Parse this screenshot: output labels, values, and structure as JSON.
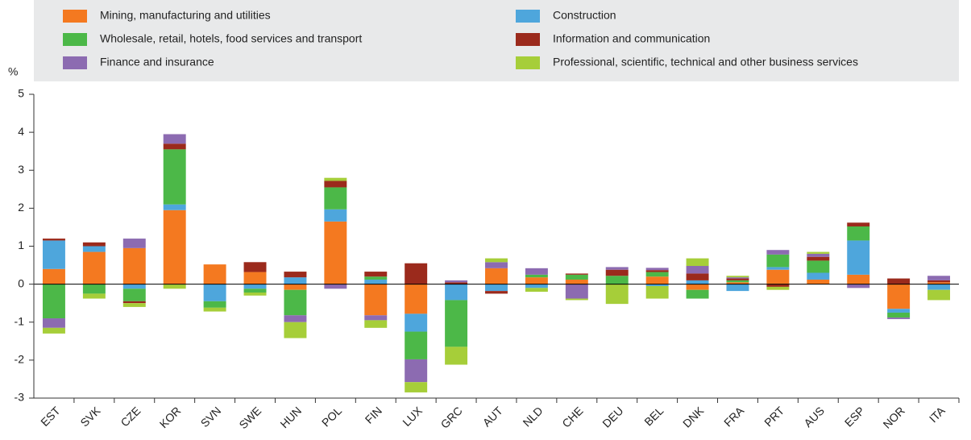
{
  "chart_data": {
    "type": "stacked_bar",
    "y_label": "%",
    "categories": [
      "EST",
      "SVK",
      "CZE",
      "KOR",
      "SVN",
      "SWE",
      "HUN",
      "POL",
      "FIN",
      "LUX",
      "GRC",
      "AUT",
      "NLD",
      "CHE",
      "DEU",
      "BEL",
      "DNK",
      "FRA",
      "PRT",
      "AUS",
      "ESP",
      "NOR",
      "ITA"
    ],
    "series": [
      {
        "name": "Mining, manufacturing and utilities",
        "color": "#f47920",
        "values": [
          0.4,
          0.85,
          0.95,
          1.95,
          0.52,
          0.32,
          -0.15,
          1.65,
          -0.82,
          -0.78,
          0,
          0.42,
          0.18,
          0.12,
          0,
          0.2,
          -0.15,
          0.05,
          0.38,
          0.12,
          0.25,
          -0.65,
          0.05
        ]
      },
      {
        "name": "Construction",
        "color": "#4ea6dc",
        "values": [
          0.75,
          0.15,
          -0.12,
          0.15,
          -0.45,
          -0.12,
          0.18,
          0.32,
          0.12,
          -0.47,
          -0.42,
          -0.18,
          -0.1,
          0,
          0,
          -0.05,
          0.1,
          -0.18,
          0.07,
          0.18,
          0.9,
          -0.1,
          -0.15
        ]
      },
      {
        "name": "Wholesale, retail, hotels, food services and transport",
        "color": "#4cb848",
        "values": [
          -0.9,
          -0.25,
          -0.33,
          1.45,
          -0.17,
          -0.1,
          -0.67,
          0.58,
          0.08,
          -0.73,
          -1.23,
          0,
          0.07,
          0.13,
          0.22,
          0.12,
          -0.23,
          0.05,
          0.33,
          0.32,
          0.37,
          -0.13,
          0
        ]
      },
      {
        "name": "Information and communication",
        "color": "#9b2a1c",
        "values": [
          0.05,
          0.1,
          -0.05,
          0.15,
          0,
          0.26,
          0.15,
          0.17,
          0.13,
          0.55,
          0.05,
          -0.07,
          0,
          0.03,
          0.16,
          0.05,
          0.18,
          0.05,
          -0.07,
          0.1,
          0.1,
          0.15,
          0.05
        ]
      },
      {
        "name": "Finance and insurance",
        "color": "#8c6bb1",
        "values": [
          -0.25,
          0,
          0.25,
          0.25,
          0,
          0,
          -0.18,
          -0.12,
          -0.13,
          -0.6,
          0.05,
          0.16,
          0.17,
          -0.38,
          0.07,
          0.06,
          0.2,
          0.03,
          0.12,
          0.08,
          -0.1,
          -0.04,
          0.12
        ]
      },
      {
        "name": "Professional, scientific, technical and other business services",
        "color": "#a6ce39",
        "values": [
          -0.15,
          -0.13,
          -0.1,
          -0.12,
          -0.1,
          -0.08,
          -0.42,
          0.08,
          -0.2,
          -0.27,
          -0.47,
          0.1,
          -0.1,
          -0.04,
          -0.52,
          -0.33,
          0.2,
          0.04,
          -0.08,
          0.05,
          0,
          0,
          -0.27
        ]
      }
    ],
    "ylim": [
      -3,
      5
    ],
    "yticks": [
      -3,
      -2,
      -1,
      0,
      1,
      2,
      3,
      4,
      5
    ],
    "grid": false
  }
}
